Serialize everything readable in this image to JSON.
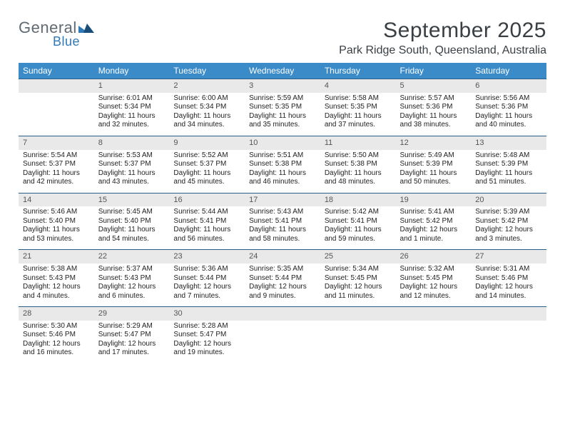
{
  "brand": {
    "name_a": "General",
    "name_b": "Blue",
    "accent": "#2f79b9",
    "gray": "#5f6a72"
  },
  "title": "September 2025",
  "location": "Park Ridge South, Queensland, Australia",
  "header_bg": "#3b8bc9",
  "daynum_bg": "#e9e9e9",
  "rule_color": "#2c5d86",
  "body_font_size": 10,
  "daynum_color": "#555555",
  "text_color": "#222222",
  "columns": [
    "Sunday",
    "Monday",
    "Tuesday",
    "Wednesday",
    "Thursday",
    "Friday",
    "Saturday"
  ],
  "weeks": [
    [
      null,
      {
        "n": "1",
        "sr": "Sunrise: 6:01 AM",
        "ss": "Sunset: 5:34 PM",
        "d1": "Daylight: 11 hours",
        "d2": "and 32 minutes."
      },
      {
        "n": "2",
        "sr": "Sunrise: 6:00 AM",
        "ss": "Sunset: 5:34 PM",
        "d1": "Daylight: 11 hours",
        "d2": "and 34 minutes."
      },
      {
        "n": "3",
        "sr": "Sunrise: 5:59 AM",
        "ss": "Sunset: 5:35 PM",
        "d1": "Daylight: 11 hours",
        "d2": "and 35 minutes."
      },
      {
        "n": "4",
        "sr": "Sunrise: 5:58 AM",
        "ss": "Sunset: 5:35 PM",
        "d1": "Daylight: 11 hours",
        "d2": "and 37 minutes."
      },
      {
        "n": "5",
        "sr": "Sunrise: 5:57 AM",
        "ss": "Sunset: 5:36 PM",
        "d1": "Daylight: 11 hours",
        "d2": "and 38 minutes."
      },
      {
        "n": "6",
        "sr": "Sunrise: 5:56 AM",
        "ss": "Sunset: 5:36 PM",
        "d1": "Daylight: 11 hours",
        "d2": "and 40 minutes."
      }
    ],
    [
      {
        "n": "7",
        "sr": "Sunrise: 5:54 AM",
        "ss": "Sunset: 5:37 PM",
        "d1": "Daylight: 11 hours",
        "d2": "and 42 minutes."
      },
      {
        "n": "8",
        "sr": "Sunrise: 5:53 AM",
        "ss": "Sunset: 5:37 PM",
        "d1": "Daylight: 11 hours",
        "d2": "and 43 minutes."
      },
      {
        "n": "9",
        "sr": "Sunrise: 5:52 AM",
        "ss": "Sunset: 5:37 PM",
        "d1": "Daylight: 11 hours",
        "d2": "and 45 minutes."
      },
      {
        "n": "10",
        "sr": "Sunrise: 5:51 AM",
        "ss": "Sunset: 5:38 PM",
        "d1": "Daylight: 11 hours",
        "d2": "and 46 minutes."
      },
      {
        "n": "11",
        "sr": "Sunrise: 5:50 AM",
        "ss": "Sunset: 5:38 PM",
        "d1": "Daylight: 11 hours",
        "d2": "and 48 minutes."
      },
      {
        "n": "12",
        "sr": "Sunrise: 5:49 AM",
        "ss": "Sunset: 5:39 PM",
        "d1": "Daylight: 11 hours",
        "d2": "and 50 minutes."
      },
      {
        "n": "13",
        "sr": "Sunrise: 5:48 AM",
        "ss": "Sunset: 5:39 PM",
        "d1": "Daylight: 11 hours",
        "d2": "and 51 minutes."
      }
    ],
    [
      {
        "n": "14",
        "sr": "Sunrise: 5:46 AM",
        "ss": "Sunset: 5:40 PM",
        "d1": "Daylight: 11 hours",
        "d2": "and 53 minutes."
      },
      {
        "n": "15",
        "sr": "Sunrise: 5:45 AM",
        "ss": "Sunset: 5:40 PM",
        "d1": "Daylight: 11 hours",
        "d2": "and 54 minutes."
      },
      {
        "n": "16",
        "sr": "Sunrise: 5:44 AM",
        "ss": "Sunset: 5:41 PM",
        "d1": "Daylight: 11 hours",
        "d2": "and 56 minutes."
      },
      {
        "n": "17",
        "sr": "Sunrise: 5:43 AM",
        "ss": "Sunset: 5:41 PM",
        "d1": "Daylight: 11 hours",
        "d2": "and 58 minutes."
      },
      {
        "n": "18",
        "sr": "Sunrise: 5:42 AM",
        "ss": "Sunset: 5:41 PM",
        "d1": "Daylight: 11 hours",
        "d2": "and 59 minutes."
      },
      {
        "n": "19",
        "sr": "Sunrise: 5:41 AM",
        "ss": "Sunset: 5:42 PM",
        "d1": "Daylight: 12 hours",
        "d2": "and 1 minute."
      },
      {
        "n": "20",
        "sr": "Sunrise: 5:39 AM",
        "ss": "Sunset: 5:42 PM",
        "d1": "Daylight: 12 hours",
        "d2": "and 3 minutes."
      }
    ],
    [
      {
        "n": "21",
        "sr": "Sunrise: 5:38 AM",
        "ss": "Sunset: 5:43 PM",
        "d1": "Daylight: 12 hours",
        "d2": "and 4 minutes."
      },
      {
        "n": "22",
        "sr": "Sunrise: 5:37 AM",
        "ss": "Sunset: 5:43 PM",
        "d1": "Daylight: 12 hours",
        "d2": "and 6 minutes."
      },
      {
        "n": "23",
        "sr": "Sunrise: 5:36 AM",
        "ss": "Sunset: 5:44 PM",
        "d1": "Daylight: 12 hours",
        "d2": "and 7 minutes."
      },
      {
        "n": "24",
        "sr": "Sunrise: 5:35 AM",
        "ss": "Sunset: 5:44 PM",
        "d1": "Daylight: 12 hours",
        "d2": "and 9 minutes."
      },
      {
        "n": "25",
        "sr": "Sunrise: 5:34 AM",
        "ss": "Sunset: 5:45 PM",
        "d1": "Daylight: 12 hours",
        "d2": "and 11 minutes."
      },
      {
        "n": "26",
        "sr": "Sunrise: 5:32 AM",
        "ss": "Sunset: 5:45 PM",
        "d1": "Daylight: 12 hours",
        "d2": "and 12 minutes."
      },
      {
        "n": "27",
        "sr": "Sunrise: 5:31 AM",
        "ss": "Sunset: 5:46 PM",
        "d1": "Daylight: 12 hours",
        "d2": "and 14 minutes."
      }
    ],
    [
      {
        "n": "28",
        "sr": "Sunrise: 5:30 AM",
        "ss": "Sunset: 5:46 PM",
        "d1": "Daylight: 12 hours",
        "d2": "and 16 minutes."
      },
      {
        "n": "29",
        "sr": "Sunrise: 5:29 AM",
        "ss": "Sunset: 5:47 PM",
        "d1": "Daylight: 12 hours",
        "d2": "and 17 minutes."
      },
      {
        "n": "30",
        "sr": "Sunrise: 5:28 AM",
        "ss": "Sunset: 5:47 PM",
        "d1": "Daylight: 12 hours",
        "d2": "and 19 minutes."
      },
      null,
      null,
      null,
      null
    ]
  ]
}
